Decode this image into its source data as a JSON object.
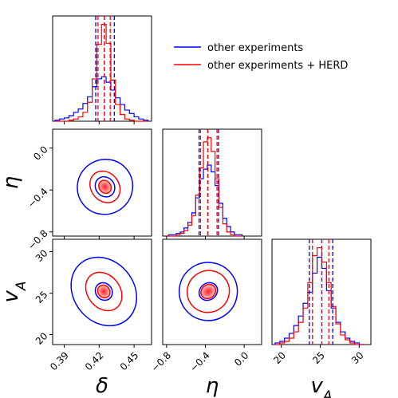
{
  "chart_data": {
    "type": "corner",
    "colors": {
      "other": "#0000ff",
      "herd": "#ff0000"
    },
    "legend": {
      "placement": "top-right",
      "entries": [
        {
          "key": "other",
          "label": "other experiments"
        },
        {
          "key": "herd",
          "label": "other experiments + HERD"
        }
      ]
    },
    "parameters": [
      {
        "key": "delta",
        "symbol": "δ",
        "sub": "",
        "range": [
          0.38,
          0.465
        ],
        "ticks": [
          0.39,
          0.42,
          0.45
        ],
        "tick_labels": [
          "0.39",
          "0.42",
          "0.45"
        ]
      },
      {
        "key": "eta",
        "symbol": "η",
        "sub": "",
        "range": [
          -0.84,
          0.18
        ],
        "ticks": [
          -0.8,
          -0.4,
          0.0
        ],
        "tick_labels": [
          "−0.8",
          "−0.4",
          "0.0"
        ]
      },
      {
        "key": "vA",
        "symbol": "v",
        "sub": "A",
        "range": [
          18.8,
          31.5
        ],
        "ticks": [
          20,
          25,
          30
        ],
        "tick_labels": [
          "20",
          "25",
          "30"
        ]
      }
    ],
    "marginals": [
      {
        "param": "delta",
        "bin_edges": [
          0.382,
          0.386,
          0.39,
          0.394,
          0.398,
          0.402,
          0.406,
          0.41,
          0.414,
          0.418,
          0.422,
          0.426,
          0.43,
          0.434,
          0.438,
          0.442,
          0.446,
          0.45,
          0.454,
          0.458,
          0.462
        ],
        "other_counts": [
          1,
          2,
          3,
          5,
          8,
          11,
          16,
          22,
          31,
          38,
          40,
          35,
          28,
          21,
          15,
          10,
          7,
          4,
          2,
          1
        ],
        "herd_counts": [
          0,
          0,
          0,
          1,
          2,
          4,
          8,
          17,
          38,
          69,
          87,
          70,
          37,
          15,
          6,
          2,
          1,
          0,
          0,
          0
        ],
        "other_quantiles": [
          0.417,
          0.4245,
          0.433
        ],
        "herd_quantiles": [
          0.419,
          0.4245,
          0.4295
        ]
      },
      {
        "param": "eta",
        "bin_edges": [
          -0.82,
          -0.78,
          -0.74,
          -0.7,
          -0.66,
          -0.62,
          -0.58,
          -0.54,
          -0.5,
          -0.46,
          -0.42,
          -0.38,
          -0.34,
          -0.3,
          -0.26,
          -0.22,
          -0.18,
          -0.14,
          -0.1,
          -0.06,
          -0.02
        ],
        "other_counts": [
          0,
          1,
          1,
          2,
          3,
          6,
          10,
          17,
          28,
          42,
          49,
          52,
          47,
          37,
          24,
          13,
          7,
          3,
          1,
          1
        ],
        "herd_counts": [
          0,
          0,
          0,
          1,
          2,
          4,
          8,
          15,
          30,
          50,
          69,
          72,
          62,
          42,
          21,
          9,
          3,
          1,
          0,
          0
        ],
        "other_quantiles": [
          -0.465,
          -0.375,
          -0.265
        ],
        "herd_quantiles": [
          -0.45,
          -0.375,
          -0.28
        ]
      },
      {
        "param": "vA",
        "bin_edges": [
          19.2,
          19.8,
          20.4,
          21.0,
          21.6,
          22.2,
          22.8,
          23.4,
          24.0,
          24.6,
          25.2,
          25.8,
          26.4,
          27.0,
          27.6,
          28.2,
          28.8,
          29.4,
          30.0,
          30.6
        ],
        "other_counts": [
          1,
          2,
          4,
          7,
          12,
          18,
          26,
          33,
          45,
          55,
          48,
          34,
          23,
          14,
          8,
          4,
          2,
          1,
          0
        ],
        "herd_counts": [
          0,
          1,
          2,
          4,
          8,
          14,
          23,
          39,
          56,
          61,
          52,
          39,
          24,
          13,
          6,
          3,
          1,
          0,
          0
        ],
        "other_quantiles": [
          23.6,
          25.2,
          26.6
        ],
        "herd_quantiles": [
          24.0,
          25.2,
          26.1
        ]
      }
    ],
    "joints": [
      {
        "x": "delta",
        "y": "eta",
        "center": [
          0.425,
          -0.37
        ],
        "other_contours": [
          {
            "level": "1σ",
            "rx": 0.008,
            "ry": 0.1
          },
          {
            "level": "2σ",
            "rx": 0.024,
            "ry": 0.26
          }
        ],
        "herd_contours": [
          {
            "level": "1σ",
            "rx": 0.005,
            "ry": 0.065
          },
          {
            "level": "2σ",
            "rx": 0.012,
            "ry": 0.16
          }
        ]
      },
      {
        "x": "delta",
        "y": "vA",
        "center": [
          0.424,
          25.2
        ],
        "other_contours": [
          {
            "level": "1σ",
            "rx": 0.007,
            "ry": 1.1
          },
          {
            "level": "2σ",
            "rx": 0.026,
            "ry": 4.4
          }
        ],
        "herd_contours": [
          {
            "level": "1σ",
            "rx": 0.005,
            "ry": 0.8
          },
          {
            "level": "2σ",
            "rx": 0.014,
            "ry": 2.5
          }
        ]
      },
      {
        "x": "eta",
        "y": "vA",
        "center": [
          -0.37,
          25.2
        ],
        "other_contours": [
          {
            "level": "1σ",
            "rx": 0.1,
            "ry": 1.0
          },
          {
            "level": "2σ",
            "rx": 0.3,
            "ry": 3.5
          }
        ],
        "herd_contours": [
          {
            "level": "1σ",
            "rx": 0.08,
            "ry": 0.8
          },
          {
            "level": "2σ",
            "rx": 0.22,
            "ry": 2.5
          }
        ]
      }
    ]
  }
}
